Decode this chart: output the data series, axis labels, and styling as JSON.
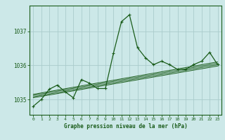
{
  "title": "Graphe pression niveau de la mer (hPa)",
  "bg_color": "#cce8e8",
  "grid_color": "#aacccc",
  "line_color": "#1a5c1a",
  "xlim": [
    -0.5,
    23.5
  ],
  "ylim": [
    1034.55,
    1037.75
  ],
  "yticks": [
    1035,
    1036,
    1037
  ],
  "xticks": [
    0,
    1,
    2,
    3,
    4,
    5,
    6,
    7,
    8,
    9,
    10,
    11,
    12,
    13,
    14,
    15,
    16,
    17,
    18,
    19,
    20,
    21,
    22,
    23
  ],
  "main_series": [
    [
      0,
      1034.8
    ],
    [
      1,
      1035.0
    ],
    [
      2,
      1035.3
    ],
    [
      3,
      1035.42
    ],
    [
      4,
      1035.22
    ],
    [
      5,
      1035.05
    ],
    [
      6,
      1035.58
    ],
    [
      7,
      1035.48
    ],
    [
      8,
      1035.32
    ],
    [
      9,
      1035.32
    ],
    [
      10,
      1036.35
    ],
    [
      11,
      1037.28
    ],
    [
      12,
      1037.48
    ],
    [
      13,
      1036.52
    ],
    [
      14,
      1036.22
    ],
    [
      15,
      1036.02
    ],
    [
      16,
      1036.12
    ],
    [
      17,
      1036.02
    ],
    [
      18,
      1035.88
    ],
    [
      19,
      1035.88
    ],
    [
      20,
      1036.02
    ],
    [
      21,
      1036.12
    ],
    [
      22,
      1036.38
    ],
    [
      23,
      1036.02
    ]
  ],
  "trend_lines": [
    [
      [
        0,
        1035.08
      ],
      [
        23,
        1036.02
      ]
    ],
    [
      [
        0,
        1035.12
      ],
      [
        23,
        1036.06
      ]
    ],
    [
      [
        0,
        1035.05
      ],
      [
        23,
        1035.98
      ]
    ],
    [
      [
        0,
        1035.15
      ],
      [
        23,
        1036.1
      ]
    ]
  ]
}
